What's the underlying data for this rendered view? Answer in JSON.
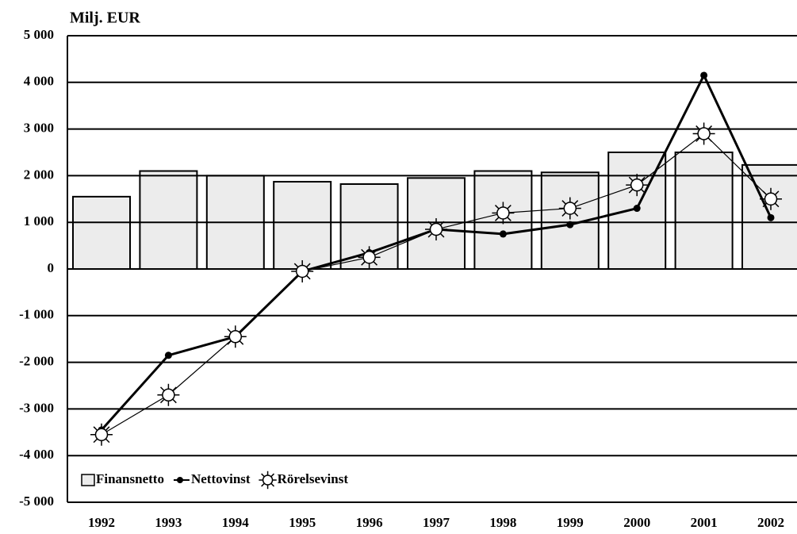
{
  "chart_data": {
    "type": "bar_line",
    "y_label": "Milj. EUR",
    "categories": [
      "1992",
      "1993",
      "1994",
      "1995",
      "1996",
      "1997",
      "1998",
      "1999",
      "2000",
      "2001",
      "2002"
    ],
    "series": [
      {
        "name": "Finansnetto",
        "type": "bar",
        "color": "#ececec",
        "values": [
          1550,
          2100,
          2000,
          1870,
          1820,
          1950,
          2100,
          2070,
          2500,
          2500,
          2230
        ]
      },
      {
        "name": "Nettovinst",
        "type": "line",
        "color": "#000000",
        "values": [
          -3450,
          -1850,
          -1450,
          -50,
          350,
          850,
          750,
          950,
          1300,
          4150,
          1100
        ]
      },
      {
        "name": "Rörelsevinst",
        "type": "line",
        "marker": "sun",
        "color": "#000000",
        "values": [
          -3550,
          -2700,
          -1450,
          -50,
          250,
          850,
          1200,
          1300,
          1800,
          2900,
          1500
        ]
      }
    ],
    "ylim": [
      -5000,
      5000
    ],
    "yticks": [
      {
        "value": 5000,
        "label": "5 000"
      },
      {
        "value": 4000,
        "label": "4 000"
      },
      {
        "value": 3000,
        "label": "3 000"
      },
      {
        "value": 2000,
        "label": "2 000"
      },
      {
        "value": 1000,
        "label": "1 000"
      },
      0,
      {
        "value": -1000,
        "label": "-1 000"
      },
      {
        "value": -2000,
        "label": "-2 000"
      },
      {
        "value": -3000,
        "label": "-3 000"
      },
      {
        "value": -4000,
        "label": "-4 000"
      },
      {
        "value": -5000,
        "label": "-5 000"
      }
    ],
    "grid": true,
    "legend": "lower left"
  }
}
